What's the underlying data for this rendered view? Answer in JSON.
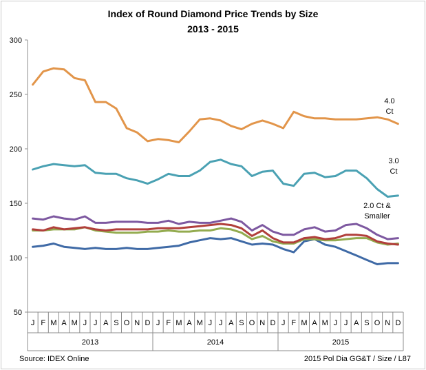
{
  "chart_data": {
    "type": "line",
    "title": "Index of Round Diamond Price Trends by Size",
    "subtitle": "2013 - 2015",
    "ylim": [
      50,
      300
    ],
    "yticks": [
      50,
      100,
      150,
      200,
      250,
      300
    ],
    "grid": false,
    "months": [
      "J",
      "F",
      "M",
      "A",
      "M",
      "J",
      "J",
      "A",
      "S",
      "O",
      "N",
      "D",
      "J",
      "F",
      "M",
      "A",
      "M",
      "J",
      "J",
      "A",
      "S",
      "O",
      "N",
      "D",
      "J",
      "F",
      "M",
      "A",
      "M",
      "J",
      "J",
      "A",
      "S",
      "O",
      "N",
      "D"
    ],
    "years": [
      "2013",
      "2014",
      "2015"
    ],
    "series": [
      {
        "name": "4.0 Ct",
        "label_lines": [
          "4.0",
          "Ct"
        ],
        "color": "#e2954a",
        "values": [
          259,
          271,
          274,
          273,
          265,
          263,
          243,
          243,
          237,
          219,
          215,
          207,
          209,
          208,
          206,
          216,
          227,
          228,
          226,
          221,
          218,
          223,
          226,
          223,
          219,
          234,
          230,
          228,
          228,
          227,
          227,
          227,
          228,
          229,
          227,
          223
        ]
      },
      {
        "name": "3.0 Ct",
        "label_lines": [
          "3.0",
          "Ct"
        ],
        "color": "#4aa1b3",
        "values": [
          181,
          184,
          186,
          185,
          184,
          185,
          178,
          177,
          177,
          173,
          171,
          168,
          172,
          177,
          175,
          175,
          180,
          188,
          190,
          186,
          184,
          175,
          179,
          180,
          168,
          166,
          177,
          178,
          174,
          175,
          180,
          180,
          173,
          163,
          156,
          157
        ]
      },
      {
        "name": "2.0 Ct & Smaller",
        "label_lines": [
          "2.0 Ct &",
          "Smaller"
        ],
        "color": "#7d58a0",
        "values": [
          136,
          135,
          138,
          136,
          135,
          138,
          132,
          132,
          133,
          133,
          133,
          132,
          132,
          134,
          131,
          133,
          132,
          132,
          134,
          136,
          133,
          125,
          130,
          124,
          121,
          121,
          126,
          128,
          124,
          125,
          130,
          131,
          127,
          121,
          117,
          118
        ]
      },
      {
        "name": "",
        "color": "#b13f3b",
        "values": [
          126,
          125,
          128,
          126,
          127,
          128,
          126,
          125,
          126,
          126,
          126,
          126,
          127,
          127,
          127,
          128,
          129,
          130,
          131,
          130,
          127,
          120,
          125,
          118,
          114,
          114,
          118,
          119,
          117,
          118,
          121,
          121,
          120,
          115,
          113,
          112
        ]
      },
      {
        "name": "",
        "color": "#93ab4f",
        "values": [
          125,
          125,
          126,
          126,
          126,
          128,
          125,
          124,
          123,
          123,
          123,
          124,
          124,
          125,
          124,
          124,
          125,
          125,
          127,
          126,
          123,
          117,
          120,
          115,
          113,
          113,
          117,
          117,
          116,
          116,
          117,
          118,
          118,
          114,
          112,
          113
        ]
      },
      {
        "name": "",
        "color": "#3f6aa6",
        "values": [
          110,
          111,
          113,
          110,
          109,
          108,
          109,
          108,
          108,
          109,
          108,
          108,
          109,
          110,
          111,
          114,
          116,
          118,
          117,
          118,
          115,
          112,
          113,
          112,
          108,
          105,
          115,
          117,
          112,
          110,
          106,
          102,
          98,
          94,
          95,
          95
        ]
      }
    ]
  },
  "footer": {
    "source": "Source:  IDEX Online",
    "credit": "2015 Pol Dia GG&T / Size / L87"
  }
}
